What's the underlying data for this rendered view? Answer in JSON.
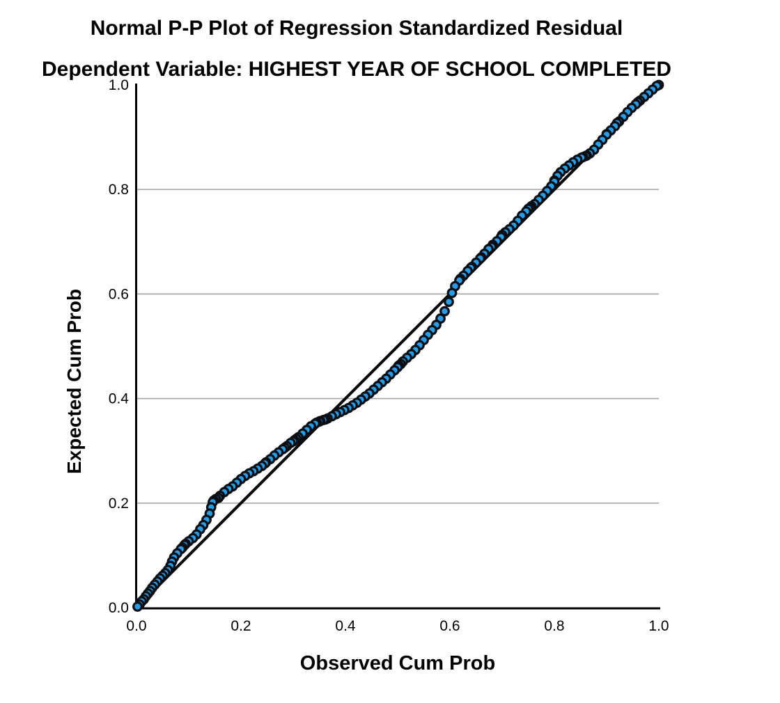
{
  "chart_data": {
    "type": "scatter",
    "title": "Normal P-P Plot of Regression Standardized Residual",
    "subtitle": "Dependent Variable: HIGHEST YEAR OF SCHOOL COMPLETED",
    "xlabel": "Observed Cum Prob",
    "ylabel": "Expected Cum Prob",
    "xlim": [
      0.0,
      1.0
    ],
    "ylim": [
      0.0,
      1.0
    ],
    "x_ticks": {
      "values": [
        0.0,
        0.2,
        0.4,
        0.6,
        0.8,
        1.0
      ],
      "labels": [
        "0.0",
        "0.2",
        "0.4",
        "0.6",
        "0.8",
        "1.0"
      ]
    },
    "y_ticks": {
      "values": [
        0.0,
        0.2,
        0.4,
        0.6,
        0.8,
        1.0
      ],
      "labels": [
        "0.0",
        "0.2",
        "0.4",
        "0.6",
        "0.8",
        "1.0"
      ]
    },
    "grid": {
      "y_values": [
        0.2,
        0.4,
        0.6,
        0.8
      ],
      "color": "#a8a8a8",
      "x_grid": false
    },
    "reference_line": {
      "from": [
        0.0,
        0.0
      ],
      "to": [
        1.0,
        1.0
      ],
      "color": "#0a0a0a"
    },
    "axis_color": "#000000",
    "background": "#ffffff",
    "legend": {
      "position": "none"
    },
    "series": [
      {
        "name": "Regression Standardized Residual",
        "marker": "circle",
        "marker_fill": "#259de8",
        "marker_outline": "#0a0e13",
        "points": [
          [
            0.002,
            0.002
          ],
          [
            0.006,
            0.006
          ],
          [
            0.01,
            0.012
          ],
          [
            0.014,
            0.016
          ],
          [
            0.018,
            0.022
          ],
          [
            0.022,
            0.027
          ],
          [
            0.026,
            0.032
          ],
          [
            0.03,
            0.038
          ],
          [
            0.035,
            0.044
          ],
          [
            0.04,
            0.05
          ],
          [
            0.045,
            0.056
          ],
          [
            0.05,
            0.061
          ],
          [
            0.055,
            0.066
          ],
          [
            0.06,
            0.072
          ],
          [
            0.065,
            0.08
          ],
          [
            0.068,
            0.088
          ],
          [
            0.072,
            0.096
          ],
          [
            0.078,
            0.104
          ],
          [
            0.085,
            0.112
          ],
          [
            0.088,
            0.115
          ],
          [
            0.092,
            0.12
          ],
          [
            0.094,
            0.122
          ],
          [
            0.1,
            0.127
          ],
          [
            0.108,
            0.133
          ],
          [
            0.115,
            0.14
          ],
          [
            0.122,
            0.15
          ],
          [
            0.128,
            0.158
          ],
          [
            0.134,
            0.168
          ],
          [
            0.14,
            0.18
          ],
          [
            0.143,
            0.192
          ],
          [
            0.146,
            0.202
          ],
          [
            0.148,
            0.205
          ],
          [
            0.152,
            0.208
          ],
          [
            0.157,
            0.21
          ],
          [
            0.16,
            0.214
          ],
          [
            0.168,
            0.221
          ],
          [
            0.176,
            0.227
          ],
          [
            0.184,
            0.232
          ],
          [
            0.192,
            0.239
          ],
          [
            0.2,
            0.246
          ],
          [
            0.208,
            0.252
          ],
          [
            0.216,
            0.257
          ],
          [
            0.224,
            0.261
          ],
          [
            0.232,
            0.266
          ],
          [
            0.24,
            0.271
          ],
          [
            0.246,
            0.276
          ],
          [
            0.248,
            0.278
          ],
          [
            0.256,
            0.284
          ],
          [
            0.264,
            0.291
          ],
          [
            0.272,
            0.297
          ],
          [
            0.28,
            0.303
          ],
          [
            0.284,
            0.306
          ],
          [
            0.288,
            0.309
          ],
          [
            0.295,
            0.315
          ],
          [
            0.3,
            0.318
          ],
          [
            0.302,
            0.32
          ],
          [
            0.306,
            0.323
          ],
          [
            0.31,
            0.326
          ],
          [
            0.318,
            0.333
          ],
          [
            0.326,
            0.34
          ],
          [
            0.334,
            0.347
          ],
          [
            0.342,
            0.352
          ],
          [
            0.345,
            0.354
          ],
          [
            0.35,
            0.356
          ],
          [
            0.352,
            0.357
          ],
          [
            0.358,
            0.359
          ],
          [
            0.362,
            0.36
          ],
          [
            0.366,
            0.362
          ],
          [
            0.374,
            0.366
          ],
          [
            0.382,
            0.37
          ],
          [
            0.39,
            0.374
          ],
          [
            0.398,
            0.378
          ],
          [
            0.406,
            0.382
          ],
          [
            0.414,
            0.387
          ],
          [
            0.422,
            0.392
          ],
          [
            0.43,
            0.398
          ],
          [
            0.438,
            0.404
          ],
          [
            0.446,
            0.41
          ],
          [
            0.454,
            0.417
          ],
          [
            0.462,
            0.424
          ],
          [
            0.47,
            0.431
          ],
          [
            0.478,
            0.438
          ],
          [
            0.486,
            0.446
          ],
          [
            0.494,
            0.454
          ],
          [
            0.5,
            0.46
          ],
          [
            0.502,
            0.463
          ],
          [
            0.506,
            0.466
          ],
          [
            0.51,
            0.471
          ],
          [
            0.518,
            0.478
          ],
          [
            0.526,
            0.485
          ],
          [
            0.534,
            0.493
          ],
          [
            0.542,
            0.502
          ],
          [
            0.55,
            0.512
          ],
          [
            0.558,
            0.522
          ],
          [
            0.566,
            0.531
          ],
          [
            0.574,
            0.541
          ],
          [
            0.582,
            0.553
          ],
          [
            0.59,
            0.567
          ],
          [
            0.598,
            0.585
          ],
          [
            0.604,
            0.602
          ],
          [
            0.61,
            0.615
          ],
          [
            0.618,
            0.626
          ],
          [
            0.62,
            0.629
          ],
          [
            0.626,
            0.635
          ],
          [
            0.634,
            0.644
          ],
          [
            0.64,
            0.65
          ],
          [
            0.642,
            0.652
          ],
          [
            0.65,
            0.66
          ],
          [
            0.658,
            0.668
          ],
          [
            0.66,
            0.67
          ],
          [
            0.666,
            0.677
          ],
          [
            0.674,
            0.686
          ],
          [
            0.68,
            0.69
          ],
          [
            0.682,
            0.694
          ],
          [
            0.69,
            0.701
          ],
          [
            0.698,
            0.709
          ],
          [
            0.7,
            0.713
          ],
          [
            0.706,
            0.718
          ],
          [
            0.714,
            0.724
          ],
          [
            0.722,
            0.731
          ],
          [
            0.73,
            0.74
          ],
          [
            0.738,
            0.75
          ],
          [
            0.746,
            0.758
          ],
          [
            0.75,
            0.763
          ],
          [
            0.754,
            0.765
          ],
          [
            0.756,
            0.768
          ],
          [
            0.762,
            0.772
          ],
          [
            0.77,
            0.78
          ],
          [
            0.778,
            0.788
          ],
          [
            0.786,
            0.797
          ],
          [
            0.794,
            0.806
          ],
          [
            0.8,
            0.815
          ],
          [
            0.8,
            0.817
          ],
          [
            0.806,
            0.826
          ],
          [
            0.812,
            0.833
          ],
          [
            0.82,
            0.84
          ],
          [
            0.828,
            0.846
          ],
          [
            0.836,
            0.852
          ],
          [
            0.844,
            0.857
          ],
          [
            0.852,
            0.861
          ],
          [
            0.855,
            0.862
          ],
          [
            0.86,
            0.864
          ],
          [
            0.862,
            0.865
          ],
          [
            0.868,
            0.869
          ],
          [
            0.876,
            0.876
          ],
          [
            0.884,
            0.886
          ],
          [
            0.892,
            0.895
          ],
          [
            0.9,
            0.905
          ],
          [
            0.9,
            0.906
          ],
          [
            0.908,
            0.913
          ],
          [
            0.916,
            0.921
          ],
          [
            0.92,
            0.927
          ],
          [
            0.924,
            0.93
          ],
          [
            0.932,
            0.939
          ],
          [
            0.94,
            0.948
          ],
          [
            0.948,
            0.956
          ],
          [
            0.956,
            0.963
          ],
          [
            0.96,
            0.967
          ],
          [
            0.964,
            0.97
          ],
          [
            0.972,
            0.977
          ],
          [
            0.98,
            0.984
          ],
          [
            0.988,
            0.991
          ],
          [
            0.996,
            0.998
          ],
          [
            1.0,
            1.0
          ]
        ]
      }
    ]
  }
}
